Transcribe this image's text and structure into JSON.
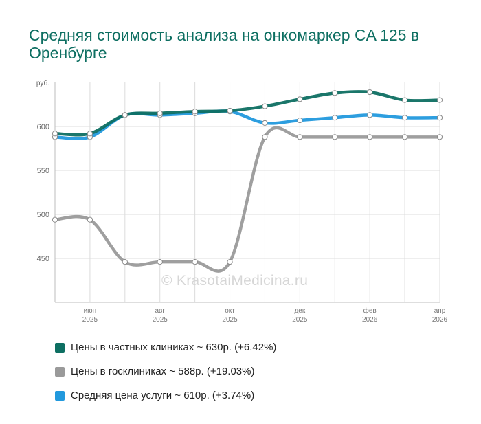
{
  "chart_data": {
    "type": "line",
    "title": "Средняя стоимость анализа на онкомаркер CA 125 в Оренбурге",
    "ylabel": "руб.",
    "ylim": [
      400,
      650
    ],
    "yticks": [
      450,
      500,
      550,
      600
    ],
    "x_points": 12,
    "x_ticks": [
      {
        "index": 1,
        "month": "июн",
        "year": "2025"
      },
      {
        "index": 3,
        "month": "авг",
        "year": "2025"
      },
      {
        "index": 5,
        "month": "окт",
        "year": "2025"
      },
      {
        "index": 7,
        "month": "дек",
        "year": "2025"
      },
      {
        "index": 9,
        "month": "фев",
        "year": "2026"
      },
      {
        "index": 11,
        "month": "апр",
        "year": "2026"
      }
    ],
    "series": [
      {
        "name": "Цены в частных клиниках",
        "color": "#0e6f62",
        "values": [
          592,
          592,
          613,
          615,
          617,
          618,
          623,
          631,
          638,
          639,
          630,
          630
        ]
      },
      {
        "name": "Цены в госклиниках",
        "color": "#9a9a9a",
        "values": [
          494,
          494,
          446,
          446,
          446,
          446,
          588,
          588,
          588,
          588,
          588,
          588
        ]
      },
      {
        "name": "Средняя цена услуги",
        "color": "#2299dd",
        "values": [
          588,
          588,
          613,
          613,
          615,
          617,
          604,
          607,
          610,
          613,
          610,
          610
        ]
      }
    ],
    "legend": [
      {
        "label": "Цены в частных клиниках ~ 630р. (+6.42%)",
        "color": "#0e6f62"
      },
      {
        "label": "Цены в госклиниках ~ 588р. (+19.03%)",
        "color": "#9a9a9a"
      },
      {
        "label": "Средняя цена услуги ~ 610р. (+3.74%)",
        "color": "#2299dd"
      }
    ],
    "watermark": "© KrasotaiMedicina.ru",
    "grid": true
  }
}
